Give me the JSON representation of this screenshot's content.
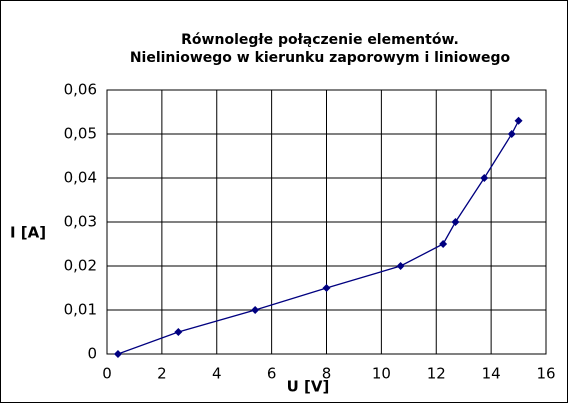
{
  "chart_data": {
    "type": "line",
    "title": [
      "Równoległe połączenie elementów.",
      "Nieliniowego w kierunku zaporowym i liniowego"
    ],
    "xlabel": "U [V]",
    "ylabel": "I [A]",
    "x": [
      0.4,
      2.6,
      5.4,
      8,
      10.7,
      12.25,
      12.7,
      13.75,
      14.75,
      15
    ],
    "values": [
      0,
      0.005,
      0.01,
      0.015,
      0.02,
      0.025,
      0.03,
      0.04,
      0.05,
      0.053
    ],
    "color": "#000080",
    "xlim": [
      0,
      16
    ],
    "xticks": [
      0,
      2,
      4,
      6,
      8,
      10,
      12,
      14,
      16
    ],
    "ylim": [
      0,
      0.06
    ],
    "yticks": [
      0,
      {
        "value": 0.01,
        "label": "0,01"
      },
      {
        "value": 0.02,
        "label": "0,02"
      },
      {
        "value": 0.03,
        "label": "0,03"
      },
      {
        "value": 0.04,
        "label": "0,04"
      },
      {
        "value": 0.05,
        "label": "0,05"
      },
      {
        "value": 0.06,
        "label": "0,06"
      }
    ],
    "grid": true
  }
}
